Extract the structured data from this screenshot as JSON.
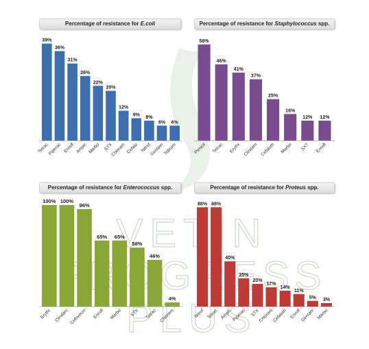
{
  "chart_data": [
    {
      "type": "bar",
      "title_prefix": "Percentage of resistance for ",
      "title_italic": "E.coli",
      "title_suffix": "",
      "color": "#3d6faf",
      "categories": [
        "Tetrac",
        "Piperac",
        "Enrofl",
        "Ampic",
        "Marbo",
        "STX",
        "Chloram",
        "Cefalo",
        "Nitrof",
        "Gentam",
        "Tobram"
      ],
      "values": [
        39,
        36,
        31,
        26,
        22,
        20,
        12,
        9,
        8,
        6,
        6
      ],
      "labels": [
        "39%",
        "36%",
        "31%",
        "26%",
        "22%",
        "20%",
        "12%",
        "9%",
        "8%",
        "6%",
        "6%"
      ],
      "ylim": [
        0,
        40
      ]
    },
    {
      "type": "bar",
      "title_prefix": "Percentage of resistance for ",
      "title_italic": "Staphylococcus",
      "title_suffix": " spp.",
      "color": "#7b4b90",
      "categories": [
        "Penicil",
        "Tetrac",
        "Erythr",
        "Clindam",
        "Cefaloth",
        "Marbo",
        "SXT",
        "Enrofl"
      ],
      "values": [
        58,
        46,
        41,
        37,
        25,
        16,
        12,
        12
      ],
      "labels": [
        "58%",
        "46%",
        "41%",
        "37%",
        "25%",
        "16%",
        "12%",
        "12%"
      ],
      "ylim": [
        0,
        60
      ]
    },
    {
      "type": "bar",
      "title_prefix": "Percentage of resistance for ",
      "title_italic": "Enterococcus",
      "title_suffix": " spp.",
      "color": "#8aa635",
      "categories": [
        "Erythr",
        "Clindam",
        "Cefovecin",
        "Enrofl",
        "Marbo",
        "STX",
        "Tetrac",
        "Chloram"
      ],
      "values": [
        100,
        100,
        96,
        65,
        65,
        58,
        46,
        4
      ],
      "labels": [
        "100%",
        "100%",
        "96%",
        "65%",
        "65%",
        "58%",
        "46%",
        "4%"
      ],
      "ylim": [
        0,
        100
      ]
    },
    {
      "type": "bar",
      "title_prefix": "Percentage of resistance for ",
      "title_italic": "Proteus",
      "title_suffix": " spp.",
      "color": "#bf3a34",
      "categories": [
        "Nitrof",
        "Tetrac",
        "Ampic",
        "Piperac",
        "STX",
        "Chloram",
        "Cefaloth",
        "Enrofl",
        "Gentam",
        "Marbo"
      ],
      "values": [
        88,
        88,
        40,
        25,
        20,
        17,
        14,
        11,
        5,
        3
      ],
      "labels": [
        "88%",
        "88%",
        "40%",
        "25%",
        "20%",
        "17%",
        "14%",
        "11%",
        "5%",
        "3%"
      ],
      "ylim": [
        0,
        90
      ]
    }
  ],
  "watermark": {
    "lines": [
      "VETIN",
      "PROGRESS",
      "PLUS"
    ],
    "color": "#c8cfc8"
  }
}
